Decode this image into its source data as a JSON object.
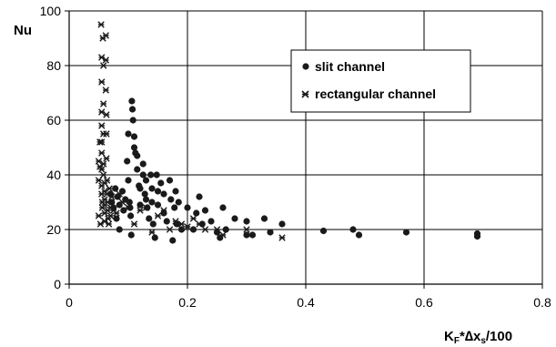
{
  "chart_data": {
    "type": "scatter",
    "title": "",
    "ylabel": "Nu",
    "xlabel_main": "K",
    "xlabel_sub1": "F",
    "xlabel_mid": "*∆x",
    "xlabel_sub2": "s",
    "xlabel_end": "/100",
    "xlim": [
      0,
      0.8
    ],
    "ylim": [
      0,
      100
    ],
    "x_ticks": [
      "0",
      "0.2",
      "0.4",
      "0.6",
      "0.8"
    ],
    "y_ticks": [
      "0",
      "20",
      "40",
      "60",
      "80",
      "100"
    ],
    "x_tick_values": [
      0,
      0.2,
      0.4,
      0.6,
      0.8
    ],
    "y_tick_values": [
      0,
      20,
      40,
      60,
      80,
      100
    ],
    "grid": true,
    "legend": "upper-right-inside",
    "colors": {
      "marker": "#1a1a1a",
      "grid": "#000000"
    },
    "series": [
      {
        "name": "slit channel",
        "marker": "circle",
        "points": [
          [
            0.07,
            33
          ],
          [
            0.072,
            30
          ],
          [
            0.075,
            28
          ],
          [
            0.078,
            35
          ],
          [
            0.08,
            24
          ],
          [
            0.082,
            32
          ],
          [
            0.085,
            29
          ],
          [
            0.085,
            20
          ],
          [
            0.09,
            34
          ],
          [
            0.092,
            27
          ],
          [
            0.095,
            31
          ],
          [
            0.098,
            45
          ],
          [
            0.1,
            55
          ],
          [
            0.1,
            38
          ],
          [
            0.102,
            30
          ],
          [
            0.103,
            28
          ],
          [
            0.104,
            25
          ],
          [
            0.105,
            18
          ],
          [
            0.106,
            67
          ],
          [
            0.107,
            64
          ],
          [
            0.108,
            60
          ],
          [
            0.11,
            54
          ],
          [
            0.11,
            50
          ],
          [
            0.112,
            48
          ],
          [
            0.115,
            47
          ],
          [
            0.115,
            42
          ],
          [
            0.118,
            36
          ],
          [
            0.12,
            35
          ],
          [
            0.12,
            29
          ],
          [
            0.125,
            44
          ],
          [
            0.125,
            40
          ],
          [
            0.128,
            33
          ],
          [
            0.13,
            38
          ],
          [
            0.13,
            31
          ],
          [
            0.132,
            28
          ],
          [
            0.135,
            24
          ],
          [
            0.138,
            40
          ],
          [
            0.14,
            35
          ],
          [
            0.14,
            30
          ],
          [
            0.142,
            22
          ],
          [
            0.145,
            17
          ],
          [
            0.148,
            40
          ],
          [
            0.15,
            34
          ],
          [
            0.15,
            29
          ],
          [
            0.155,
            37
          ],
          [
            0.16,
            33
          ],
          [
            0.16,
            26
          ],
          [
            0.165,
            23
          ],
          [
            0.17,
            38
          ],
          [
            0.172,
            31
          ],
          [
            0.175,
            16
          ],
          [
            0.178,
            28
          ],
          [
            0.18,
            34
          ],
          [
            0.182,
            22
          ],
          [
            0.185,
            30
          ],
          [
            0.19,
            20
          ],
          [
            0.2,
            28
          ],
          [
            0.21,
            20
          ],
          [
            0.215,
            26
          ],
          [
            0.22,
            32
          ],
          [
            0.225,
            22
          ],
          [
            0.23,
            27
          ],
          [
            0.24,
            23
          ],
          [
            0.25,
            19
          ],
          [
            0.255,
            17
          ],
          [
            0.26,
            28
          ],
          [
            0.265,
            20
          ],
          [
            0.28,
            24
          ],
          [
            0.3,
            23
          ],
          [
            0.3,
            18
          ],
          [
            0.31,
            18
          ],
          [
            0.33,
            24
          ],
          [
            0.34,
            19
          ],
          [
            0.36,
            22
          ],
          [
            0.43,
            19.5
          ],
          [
            0.48,
            20
          ],
          [
            0.49,
            18
          ],
          [
            0.57,
            19
          ],
          [
            0.69,
            17.5
          ],
          [
            0.69,
            18.5
          ]
        ]
      },
      {
        "name": "rectangular channel",
        "marker": "x",
        "points": [
          [
            0.05,
            45
          ],
          [
            0.05,
            38
          ],
          [
            0.05,
            25
          ],
          [
            0.052,
            43
          ],
          [
            0.052,
            52
          ],
          [
            0.053,
            22
          ],
          [
            0.054,
            95
          ],
          [
            0.055,
            83
          ],
          [
            0.055,
            74
          ],
          [
            0.055,
            63
          ],
          [
            0.055,
            58
          ],
          [
            0.055,
            52
          ],
          [
            0.055,
            48
          ],
          [
            0.055,
            42
          ],
          [
            0.055,
            36
          ],
          [
            0.055,
            33
          ],
          [
            0.056,
            30
          ],
          [
            0.056,
            28
          ],
          [
            0.057,
            90
          ],
          [
            0.058,
            80
          ],
          [
            0.058,
            66
          ],
          [
            0.058,
            55
          ],
          [
            0.058,
            44
          ],
          [
            0.058,
            40
          ],
          [
            0.06,
            37
          ],
          [
            0.06,
            34
          ],
          [
            0.06,
            31
          ],
          [
            0.06,
            29
          ],
          [
            0.06,
            26
          ],
          [
            0.06,
            23
          ],
          [
            0.062,
            91
          ],
          [
            0.062,
            82
          ],
          [
            0.062,
            71
          ],
          [
            0.063,
            62
          ],
          [
            0.063,
            55
          ],
          [
            0.063,
            46
          ],
          [
            0.064,
            38
          ],
          [
            0.064,
            33
          ],
          [
            0.065,
            30
          ],
          [
            0.065,
            27
          ],
          [
            0.066,
            24
          ],
          [
            0.067,
            22
          ],
          [
            0.068,
            35
          ],
          [
            0.07,
            28
          ],
          [
            0.07,
            25
          ],
          [
            0.072,
            32
          ],
          [
            0.075,
            27
          ],
          [
            0.08,
            26
          ],
          [
            0.085,
            33
          ],
          [
            0.09,
            30
          ],
          [
            0.1,
            28
          ],
          [
            0.11,
            22
          ],
          [
            0.12,
            27
          ],
          [
            0.13,
            28
          ],
          [
            0.14,
            19
          ],
          [
            0.15,
            25
          ],
          [
            0.16,
            27
          ],
          [
            0.17,
            20
          ],
          [
            0.18,
            23
          ],
          [
            0.19,
            22
          ],
          [
            0.2,
            21
          ],
          [
            0.21,
            24
          ],
          [
            0.22,
            22
          ],
          [
            0.23,
            20
          ],
          [
            0.25,
            20
          ],
          [
            0.26,
            18
          ],
          [
            0.3,
            20
          ],
          [
            0.36,
            17
          ]
        ]
      }
    ]
  }
}
